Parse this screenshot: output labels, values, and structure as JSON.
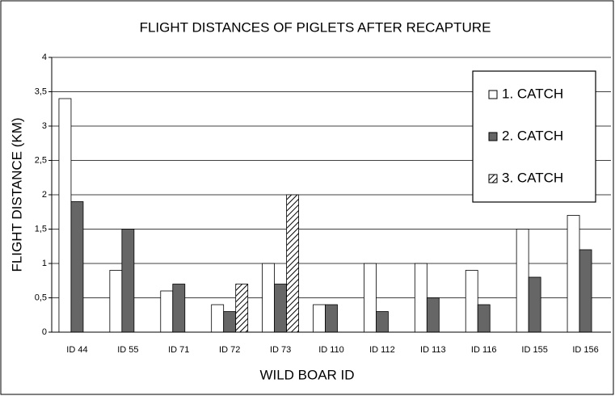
{
  "chart_data": {
    "type": "bar",
    "title": "FLIGHT DISTANCES OF PIGLETS  AFTER RECAPTURE",
    "x_label": "WILD BOAR ID",
    "y_label": "FLIGHT DISTANCE (KM)",
    "categories": [
      "ID 44",
      "ID 55",
      "ID 71",
      "ID 72",
      "ID 73",
      "ID 110",
      "ID 112",
      "ID 113",
      "ID 116",
      "ID 155",
      "ID 156"
    ],
    "series": [
      {
        "name": "1. CATCH",
        "color": "#ffffff",
        "values": [
          3.4,
          0.9,
          0.6,
          0.4,
          1.0,
          0.4,
          1.0,
          1.0,
          0.9,
          1.5,
          1.7
        ]
      },
      {
        "name": "2. CATCH",
        "color": "#666666",
        "values": [
          1.9,
          1.5,
          0.7,
          0.3,
          0.7,
          0.4,
          0.3,
          0.5,
          0.4,
          0.8,
          1.2
        ]
      },
      {
        "name": "3. CATCH",
        "color": "#ffffff",
        "pattern": "hatch",
        "values": [
          null,
          null,
          null,
          0.7,
          2.0,
          null,
          null,
          null,
          null,
          null,
          null
        ]
      }
    ],
    "ylim": [
      0,
      4
    ],
    "yticks": [
      0,
      {
        "value": 0.5,
        "label": "0,5"
      },
      1,
      {
        "value": 1.5,
        "label": "1,5"
      },
      2,
      {
        "value": 2.5,
        "label": "2,5"
      },
      3,
      {
        "value": 3.5,
        "label": "3,5"
      },
      4
    ],
    "grid": true,
    "legend": "upper right"
  }
}
